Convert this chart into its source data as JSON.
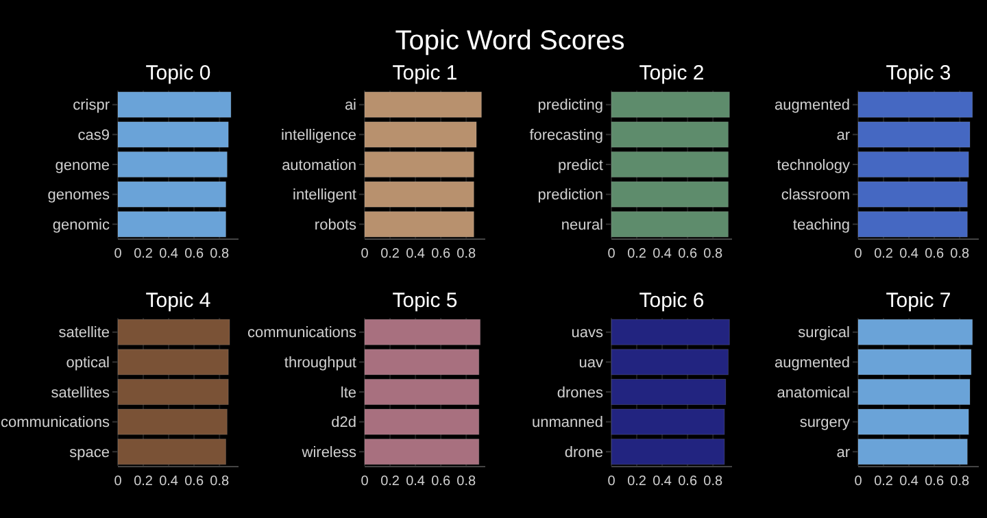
{
  "chart_data": [
    {
      "type": "bar",
      "orientation": "horizontal",
      "title": "Topic 0",
      "annotations": [
        "Topic Word Scores"
      ],
      "categories": [
        "crispr",
        "cas9",
        "genome",
        "genomes",
        "genomic"
      ],
      "values": [
        0.89,
        0.87,
        0.86,
        0.85,
        0.85
      ],
      "color": "#6aa3d8",
      "xlim": [
        0,
        0.95
      ],
      "xticks": [
        0,
        0.2,
        0.4,
        0.6,
        0.8
      ],
      "grid": "x"
    },
    {
      "type": "bar",
      "orientation": "horizontal",
      "title": "Topic 1",
      "categories": [
        "ai",
        "intelligence",
        "automation",
        "intelligent",
        "robots"
      ],
      "values": [
        0.92,
        0.88,
        0.86,
        0.86,
        0.86
      ],
      "color": "#b8916e",
      "xlim": [
        0,
        0.95
      ],
      "xticks": [
        0,
        0.2,
        0.4,
        0.6,
        0.8
      ],
      "grid": "x"
    },
    {
      "type": "bar",
      "orientation": "horizontal",
      "title": "Topic 2",
      "categories": [
        "predicting",
        "forecasting",
        "predict",
        "prediction",
        "neural"
      ],
      "values": [
        0.93,
        0.92,
        0.92,
        0.92,
        0.92
      ],
      "color": "#5e8c6c",
      "xlim": [
        0,
        0.95
      ],
      "xticks": [
        0,
        0.2,
        0.4,
        0.6,
        0.8
      ],
      "grid": "x"
    },
    {
      "type": "bar",
      "orientation": "horizontal",
      "title": "Topic 3",
      "categories": [
        "augmented",
        "ar",
        "technology",
        "classroom",
        "teaching"
      ],
      "values": [
        0.9,
        0.88,
        0.87,
        0.86,
        0.86
      ],
      "color": "#4568c2",
      "xlim": [
        0,
        0.95
      ],
      "xticks": [
        0,
        0.2,
        0.4,
        0.6,
        0.8
      ],
      "grid": "x"
    },
    {
      "type": "bar",
      "orientation": "horizontal",
      "title": "Topic 4",
      "categories": [
        "satellite",
        "optical",
        "satellites",
        "communications",
        "space"
      ],
      "values": [
        0.88,
        0.87,
        0.87,
        0.86,
        0.85
      ],
      "color": "#7a5236",
      "xlim": [
        0,
        0.95
      ],
      "xticks": [
        0,
        0.2,
        0.4,
        0.6,
        0.8
      ],
      "grid": "x"
    },
    {
      "type": "bar",
      "orientation": "horizontal",
      "title": "Topic 5",
      "categories": [
        "communications",
        "throughput",
        "lte",
        "d2d",
        "wireless"
      ],
      "values": [
        0.91,
        0.9,
        0.9,
        0.9,
        0.9
      ],
      "color": "#a8707f",
      "xlim": [
        0,
        0.95
      ],
      "xticks": [
        0,
        0.2,
        0.4,
        0.6,
        0.8
      ],
      "grid": "x"
    },
    {
      "type": "bar",
      "orientation": "horizontal",
      "title": "Topic 6",
      "categories": [
        "uavs",
        "uav",
        "drones",
        "unmanned",
        "drone"
      ],
      "values": [
        0.93,
        0.92,
        0.9,
        0.89,
        0.89
      ],
      "color": "#222480",
      "xlim": [
        0,
        0.95
      ],
      "xticks": [
        0,
        0.2,
        0.4,
        0.6,
        0.8
      ],
      "grid": "x"
    },
    {
      "type": "bar",
      "orientation": "horizontal",
      "title": "Topic 7",
      "categories": [
        "surgical",
        "augmented",
        "anatomical",
        "surgery",
        "ar"
      ],
      "values": [
        0.9,
        0.89,
        0.88,
        0.87,
        0.86
      ],
      "color": "#6aa3d8",
      "xlim": [
        0,
        0.95
      ],
      "xticks": [
        0,
        0.2,
        0.4,
        0.6,
        0.8
      ],
      "grid": "x"
    }
  ]
}
